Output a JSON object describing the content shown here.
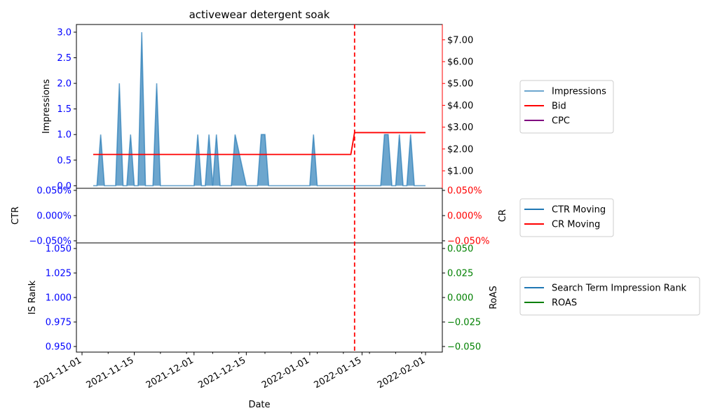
{
  "chart_data": {
    "type": "line",
    "title": "activewear detergent soak",
    "xlabel": "Date",
    "x_ticks": [
      "2021-11-01",
      "2021-11-15",
      "2021-12-01",
      "2021-12-15",
      "2022-01-01",
      "2022-01-15",
      "2022-02-01"
    ],
    "marker_date": "2022-01-13",
    "colors": {
      "impressions": "#1f77b4",
      "bid": "#ff0000",
      "cpc": "#800080",
      "ctr": "#1f77b4",
      "cr": "#ff0000",
      "is_rank": "#1f77b4",
      "roas": "#008000",
      "left_ticks": "#0000ff",
      "marker": "#ff0000"
    },
    "panels": [
      {
        "id": "top",
        "ylabel_left": "Impressions",
        "ylabel_right": "",
        "ylim_left": [
          -0.05,
          3.15
        ],
        "ylim_right": [
          0.2,
          7.7
        ],
        "left_ticks": [
          "0.0",
          "0.5",
          "1.0",
          "1.5",
          "2.0",
          "2.5",
          "3.0"
        ],
        "right_ticks": [
          "$1.00",
          "$2.00",
          "$3.00",
          "$4.00",
          "$5.00",
          "$6.00",
          "$7.00"
        ],
        "right_tick_color": "#000000",
        "legend": [
          {
            "label": "Impressions",
            "color": "#1f77b4",
            "alpha": 0.65
          },
          {
            "label": "Bid",
            "color": "#ff0000",
            "alpha": 1
          },
          {
            "label": "CPC",
            "color": "#800080",
            "alpha": 1
          }
        ]
      },
      {
        "id": "mid",
        "ylabel_left": "CTR",
        "ylabel_right": "CR",
        "left_ticks": [
          "0.050%",
          "0.000%",
          "−0.050%"
        ],
        "right_ticks": [
          "0.050%",
          "0.000%",
          "−0.050%"
        ],
        "right_tick_color": "#ff0000",
        "legend": [
          {
            "label": "CTR Moving",
            "color": "#1f77b4",
            "alpha": 1
          },
          {
            "label": "CR Moving",
            "color": "#ff0000",
            "alpha": 1
          }
        ]
      },
      {
        "id": "bot",
        "ylabel_left": "IS Rank",
        "ylabel_right": "RoAS",
        "left_ticks": [
          "1.050",
          "1.025",
          "1.000",
          "0.975",
          "0.950"
        ],
        "right_ticks": [
          "0.050",
          "0.025",
          "0.000",
          "−0.025",
          "−0.050"
        ],
        "right_tick_color": "#008000",
        "legend": [
          {
            "label": "Search Term Impression Rank",
            "color": "#1f77b4",
            "alpha": 1
          },
          {
            "label": "ROAS",
            "color": "#008000",
            "alpha": 1
          }
        ]
      }
    ],
    "impressions": [
      [
        "2021-11-04",
        0
      ],
      [
        "2021-11-05",
        0
      ],
      [
        "2021-11-06",
        1
      ],
      [
        "2021-11-07",
        0
      ],
      [
        "2021-11-10",
        0
      ],
      [
        "2021-11-11",
        2
      ],
      [
        "2021-11-12",
        0
      ],
      [
        "2021-11-13",
        0
      ],
      [
        "2021-11-14",
        1
      ],
      [
        "2021-11-15",
        0
      ],
      [
        "2021-11-16",
        0
      ],
      [
        "2021-11-17",
        3
      ],
      [
        "2021-11-18",
        0
      ],
      [
        "2021-11-20",
        0
      ],
      [
        "2021-11-21",
        2
      ],
      [
        "2021-11-22",
        0
      ],
      [
        "2021-12-01",
        0
      ],
      [
        "2021-12-02",
        1
      ],
      [
        "2021-12-03",
        0
      ],
      [
        "2021-12-04",
        0
      ],
      [
        "2021-12-05",
        1
      ],
      [
        "2021-12-06",
        0
      ],
      [
        "2021-12-07",
        1
      ],
      [
        "2021-12-08",
        0
      ],
      [
        "2021-12-11",
        0
      ],
      [
        "2021-12-12",
        1
      ],
      [
        "2021-12-15",
        0
      ],
      [
        "2021-12-18",
        0
      ],
      [
        "2021-12-19",
        1
      ],
      [
        "2021-12-20",
        1
      ],
      [
        "2021-12-21",
        0
      ],
      [
        "2022-01-01",
        0
      ],
      [
        "2022-01-02",
        1
      ],
      [
        "2022-01-03",
        0
      ],
      [
        "2022-01-20",
        0
      ],
      [
        "2022-01-21",
        1
      ],
      [
        "2022-01-22",
        1
      ],
      [
        "2022-01-23",
        0
      ],
      [
        "2022-01-24",
        0
      ],
      [
        "2022-01-25",
        1
      ],
      [
        "2022-01-26",
        0
      ],
      [
        "2022-01-27",
        0
      ],
      [
        "2022-01-28",
        1
      ],
      [
        "2022-01-29",
        0
      ],
      [
        "2022-02-01",
        0
      ]
    ],
    "bid": [
      [
        "2021-11-04",
        1.75
      ],
      [
        "2022-01-12",
        1.75
      ],
      [
        "2022-01-13",
        2.75
      ],
      [
        "2022-02-01",
        2.75
      ]
    ],
    "cpc": [],
    "ctr_moving": [],
    "cr_moving": [],
    "is_rank": [],
    "roas": []
  }
}
